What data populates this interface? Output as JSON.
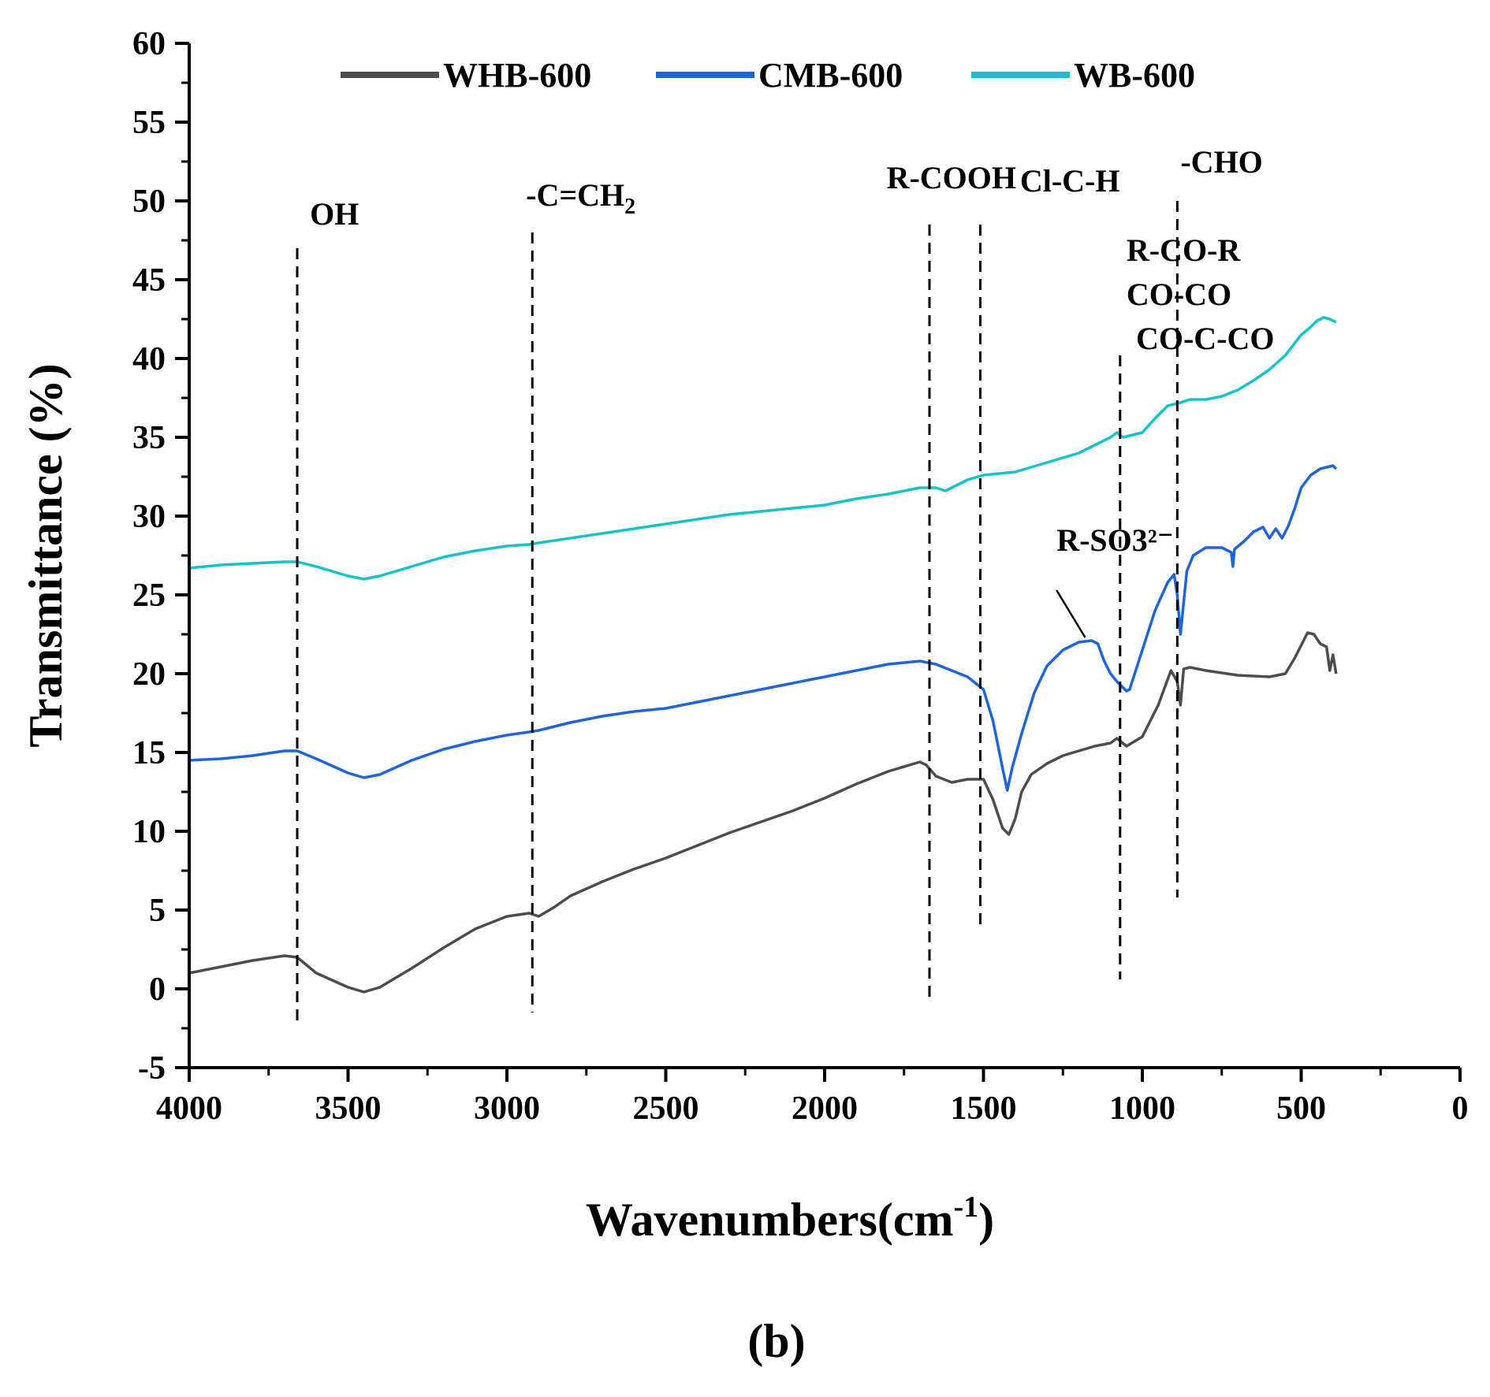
{
  "chart_data": {
    "type": "line",
    "title": "",
    "xlabel": "Wavenumbers(cm",
    "xlabel_sup": "-1",
    "xlabel_tail": ")",
    "ylabel": "Transmittance (%)",
    "xlim": [
      4000,
      0
    ],
    "ylim": [
      -5,
      60
    ],
    "x_ticks": [
      4000,
      3500,
      3000,
      2500,
      2000,
      1500,
      1000,
      500,
      0
    ],
    "y_ticks": [
      -5,
      0,
      5,
      10,
      15,
      20,
      25,
      30,
      35,
      40,
      45,
      50,
      55,
      60
    ],
    "legend_position": "top",
    "series": [
      {
        "name": "WHB-600",
        "color": "#4d4d4d",
        "points": [
          [
            4000,
            1.0
          ],
          [
            3900,
            1.4
          ],
          [
            3800,
            1.8
          ],
          [
            3700,
            2.1
          ],
          [
            3660,
            2.0
          ],
          [
            3600,
            1.0
          ],
          [
            3500,
            0.1
          ],
          [
            3450,
            -0.2
          ],
          [
            3400,
            0.1
          ],
          [
            3300,
            1.3
          ],
          [
            3200,
            2.6
          ],
          [
            3100,
            3.8
          ],
          [
            3000,
            4.6
          ],
          [
            2930,
            4.8
          ],
          [
            2900,
            4.6
          ],
          [
            2850,
            5.2
          ],
          [
            2800,
            5.9
          ],
          [
            2700,
            6.8
          ],
          [
            2600,
            7.6
          ],
          [
            2500,
            8.3
          ],
          [
            2400,
            9.1
          ],
          [
            2300,
            9.9
          ],
          [
            2200,
            10.6
          ],
          [
            2100,
            11.3
          ],
          [
            2000,
            12.1
          ],
          [
            1900,
            13.0
          ],
          [
            1800,
            13.8
          ],
          [
            1700,
            14.4
          ],
          [
            1680,
            14.2
          ],
          [
            1650,
            13.5
          ],
          [
            1600,
            13.1
          ],
          [
            1550,
            13.3
          ],
          [
            1500,
            13.3
          ],
          [
            1470,
            12.0
          ],
          [
            1440,
            10.2
          ],
          [
            1420,
            9.8
          ],
          [
            1400,
            10.8
          ],
          [
            1380,
            12.5
          ],
          [
            1350,
            13.6
          ],
          [
            1300,
            14.3
          ],
          [
            1250,
            14.8
          ],
          [
            1200,
            15.1
          ],
          [
            1150,
            15.4
          ],
          [
            1100,
            15.6
          ],
          [
            1080,
            15.9
          ],
          [
            1050,
            15.4
          ],
          [
            1000,
            16.0
          ],
          [
            950,
            18.0
          ],
          [
            910,
            20.2
          ],
          [
            890,
            19.5
          ],
          [
            880,
            18.0
          ],
          [
            870,
            20.3
          ],
          [
            850,
            20.4
          ],
          [
            800,
            20.2
          ],
          [
            700,
            19.9
          ],
          [
            600,
            19.8
          ],
          [
            550,
            20.0
          ],
          [
            520,
            21.0
          ],
          [
            480,
            22.6
          ],
          [
            460,
            22.5
          ],
          [
            440,
            21.9
          ],
          [
            420,
            21.7
          ],
          [
            410,
            20.2
          ],
          [
            400,
            21.2
          ],
          [
            390,
            20.0
          ]
        ]
      },
      {
        "name": "CMB-600",
        "color": "#1f64d8",
        "points": [
          [
            4000,
            14.5
          ],
          [
            3900,
            14.6
          ],
          [
            3800,
            14.8
          ],
          [
            3700,
            15.1
          ],
          [
            3660,
            15.1
          ],
          [
            3600,
            14.6
          ],
          [
            3500,
            13.7
          ],
          [
            3450,
            13.4
          ],
          [
            3400,
            13.6
          ],
          [
            3300,
            14.5
          ],
          [
            3200,
            15.2
          ],
          [
            3100,
            15.7
          ],
          [
            3000,
            16.1
          ],
          [
            2930,
            16.3
          ],
          [
            2900,
            16.4
          ],
          [
            2800,
            16.9
          ],
          [
            2700,
            17.3
          ],
          [
            2600,
            17.6
          ],
          [
            2500,
            17.8
          ],
          [
            2400,
            18.2
          ],
          [
            2300,
            18.6
          ],
          [
            2200,
            19.0
          ],
          [
            2100,
            19.4
          ],
          [
            2000,
            19.8
          ],
          [
            1900,
            20.2
          ],
          [
            1800,
            20.6
          ],
          [
            1700,
            20.8
          ],
          [
            1650,
            20.6
          ],
          [
            1600,
            20.2
          ],
          [
            1550,
            19.8
          ],
          [
            1500,
            19.0
          ],
          [
            1470,
            17.0
          ],
          [
            1440,
            14.0
          ],
          [
            1425,
            12.6
          ],
          [
            1410,
            14.0
          ],
          [
            1380,
            16.2
          ],
          [
            1340,
            18.8
          ],
          [
            1300,
            20.5
          ],
          [
            1250,
            21.5
          ],
          [
            1200,
            22.0
          ],
          [
            1160,
            22.1
          ],
          [
            1140,
            21.9
          ],
          [
            1120,
            20.8
          ],
          [
            1100,
            20.0
          ],
          [
            1080,
            19.5
          ],
          [
            1050,
            18.9
          ],
          [
            1040,
            19.0
          ],
          [
            1000,
            21.5
          ],
          [
            960,
            24.0
          ],
          [
            920,
            25.8
          ],
          [
            900,
            26.3
          ],
          [
            890,
            25.0
          ],
          [
            880,
            22.5
          ],
          [
            870,
            24.5
          ],
          [
            860,
            26.5
          ],
          [
            840,
            27.5
          ],
          [
            800,
            28.0
          ],
          [
            750,
            28.0
          ],
          [
            720,
            27.7
          ],
          [
            715,
            26.8
          ],
          [
            710,
            27.9
          ],
          [
            680,
            28.4
          ],
          [
            650,
            29.0
          ],
          [
            620,
            29.3
          ],
          [
            600,
            28.6
          ],
          [
            580,
            29.2
          ],
          [
            560,
            28.6
          ],
          [
            540,
            29.4
          ],
          [
            520,
            30.5
          ],
          [
            500,
            31.8
          ],
          [
            470,
            32.6
          ],
          [
            440,
            33.0
          ],
          [
            420,
            33.1
          ],
          [
            400,
            33.2
          ],
          [
            390,
            33.0
          ]
        ]
      },
      {
        "name": "WB-600",
        "color": "#17c3c9",
        "points": [
          [
            4000,
            26.7
          ],
          [
            3900,
            26.9
          ],
          [
            3800,
            27.0
          ],
          [
            3700,
            27.1
          ],
          [
            3660,
            27.1
          ],
          [
            3600,
            26.8
          ],
          [
            3500,
            26.2
          ],
          [
            3450,
            26.0
          ],
          [
            3400,
            26.2
          ],
          [
            3300,
            26.8
          ],
          [
            3200,
            27.4
          ],
          [
            3100,
            27.8
          ],
          [
            3000,
            28.1
          ],
          [
            2930,
            28.2
          ],
          [
            2900,
            28.3
          ],
          [
            2800,
            28.6
          ],
          [
            2700,
            28.9
          ],
          [
            2600,
            29.2
          ],
          [
            2500,
            29.5
          ],
          [
            2400,
            29.8
          ],
          [
            2300,
            30.1
          ],
          [
            2200,
            30.3
          ],
          [
            2100,
            30.5
          ],
          [
            2000,
            30.7
          ],
          [
            1900,
            31.1
          ],
          [
            1800,
            31.4
          ],
          [
            1700,
            31.8
          ],
          [
            1650,
            31.8
          ],
          [
            1620,
            31.6
          ],
          [
            1600,
            31.8
          ],
          [
            1550,
            32.3
          ],
          [
            1500,
            32.6
          ],
          [
            1400,
            32.8
          ],
          [
            1300,
            33.4
          ],
          [
            1200,
            34.0
          ],
          [
            1150,
            34.5
          ],
          [
            1100,
            35.0
          ],
          [
            1080,
            35.3
          ],
          [
            1060,
            35.0
          ],
          [
            1000,
            35.3
          ],
          [
            960,
            36.2
          ],
          [
            920,
            37.0
          ],
          [
            880,
            37.2
          ],
          [
            850,
            37.4
          ],
          [
            800,
            37.4
          ],
          [
            750,
            37.6
          ],
          [
            700,
            38.0
          ],
          [
            650,
            38.6
          ],
          [
            600,
            39.3
          ],
          [
            550,
            40.2
          ],
          [
            500,
            41.5
          ],
          [
            470,
            42.0
          ],
          [
            450,
            42.4
          ],
          [
            430,
            42.6
          ],
          [
            410,
            42.5
          ],
          [
            400,
            42.4
          ],
          [
            390,
            42.3
          ]
        ]
      }
    ],
    "vlines": [
      {
        "x": 3660,
        "y_top": 47,
        "y_bottom": -2.4
      },
      {
        "x": 2920,
        "y_top": 48,
        "y_bottom": -1.5
      },
      {
        "x": 1670,
        "y_top": 48.5,
        "y_bottom": -0.8
      },
      {
        "x": 1510,
        "y_top": 48.5,
        "y_bottom": 4.1
      },
      {
        "x": 1070,
        "y_top": 40.2,
        "y_bottom": 0.6
      },
      {
        "x": 890,
        "y_top": 50.0,
        "y_bottom": 5.8
      }
    ],
    "annotations": [
      {
        "text": "OH",
        "x": 3620,
        "y": 48.5,
        "size": "large"
      },
      {
        "text": "-C=CH",
        "sub": "2",
        "x": 2940,
        "y": 49.7
      },
      {
        "text": "R-COOH",
        "x": 1805,
        "y": 50.8
      },
      {
        "text": "Cl-C-H",
        "x": 1385,
        "y": 50.6
      },
      {
        "text": "R-CO-R",
        "x": 1050,
        "y": 46.2
      },
      {
        "text": "CO-CO",
        "x": 1050,
        "y": 43.4
      },
      {
        "text": "CO-C-CO",
        "x": 1020,
        "y": 40.6
      },
      {
        "text": "-CHO",
        "x": 880,
        "y": 51.8
      },
      {
        "text": "R-SO3²⁻",
        "x": 1270,
        "y": 27.8
      }
    ],
    "pointer": {
      "from": [
        1270,
        25.3
      ],
      "to": [
        1180,
        22.3
      ]
    },
    "panel_label": "(b)"
  }
}
